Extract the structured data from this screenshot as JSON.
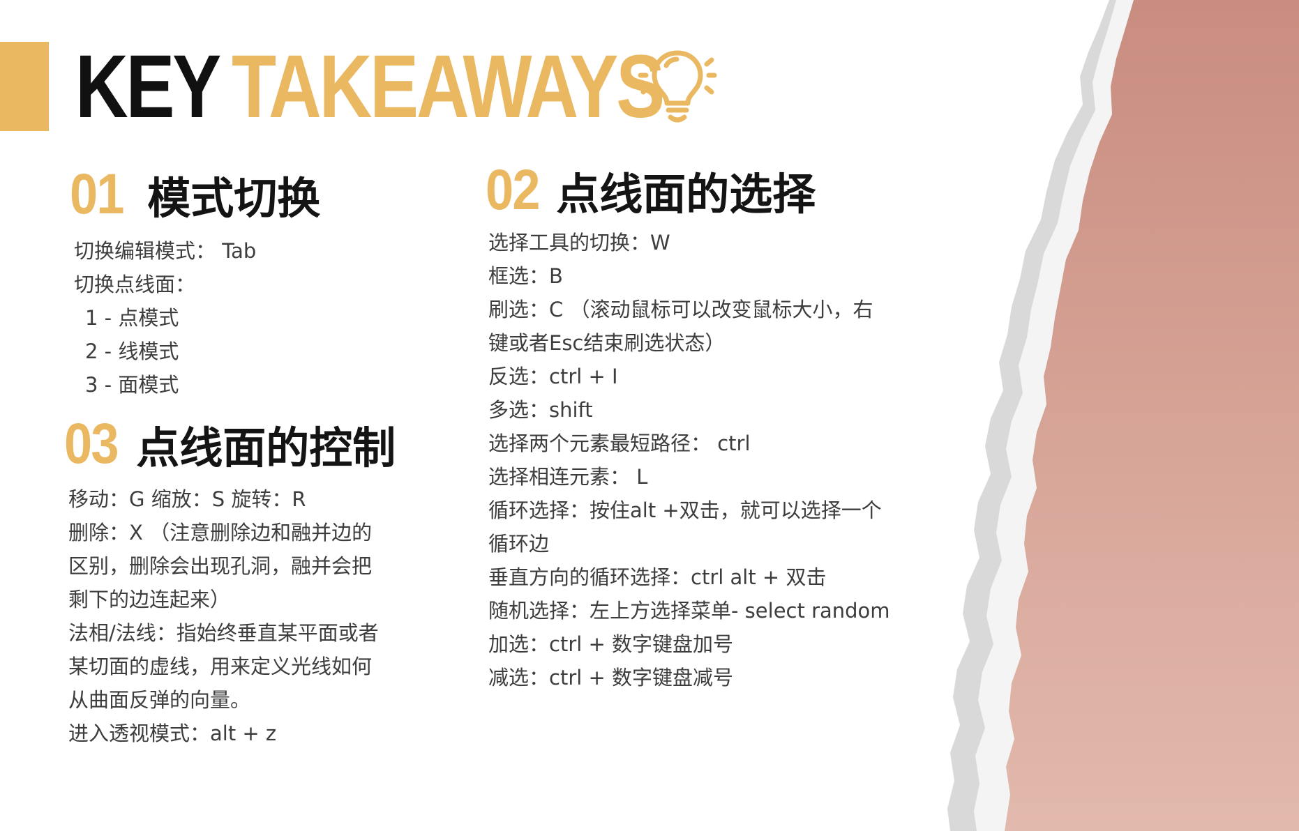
{
  "header": {
    "title_part1": "KEY",
    "title_part2": "TAKEAWAYS",
    "icon": "lightbulb-icon"
  },
  "colors": {
    "accent": "#ebb862",
    "paper_pink": "#d29c90",
    "text_dark": "#141414",
    "text_body": "#3d3d3d"
  },
  "sections": {
    "s01": {
      "number": "01",
      "title": "模式切换",
      "lines": [
        "切换编辑模式： Tab",
        "切换点线面：",
        "1 - 点模式",
        "2 - 线模式",
        "3 - 面模式"
      ]
    },
    "s02": {
      "number": "02",
      "title": "点线面的选择",
      "lines": [
        "选择工具的切换：W",
        "框选：B",
        "刷选：C （滚动鼠标可以改变鼠标大小，右",
        "键或者Esc结束刷选状态）",
        "反选：ctrl + I",
        "多选：shift",
        "选择两个元素最短路径： ctrl",
        "选择相连元素： L",
        "循环选择：按住alt +双击，就可以选择一个",
        "循环边",
        "垂直方向的循环选择：ctrl alt + 双击",
        "随机选择：左上方选择菜单- select random",
        "加选：ctrl + 数字键盘加号",
        "减选：ctrl + 数字键盘减号"
      ]
    },
    "s03": {
      "number": "03",
      "title": "点线面的控制",
      "lines": [
        "移动：G 缩放：S 旋转：R",
        "删除：X （注意删除边和融并边的",
        "区别，删除会出现孔洞，融并会把",
        "剩下的边连起来）",
        "法相/法线：指始终垂直某平面或者",
        "某切面的虚线，用来定义光线如何",
        "从曲面反弹的向量。",
        "进入透视模式：alt + z"
      ]
    }
  }
}
